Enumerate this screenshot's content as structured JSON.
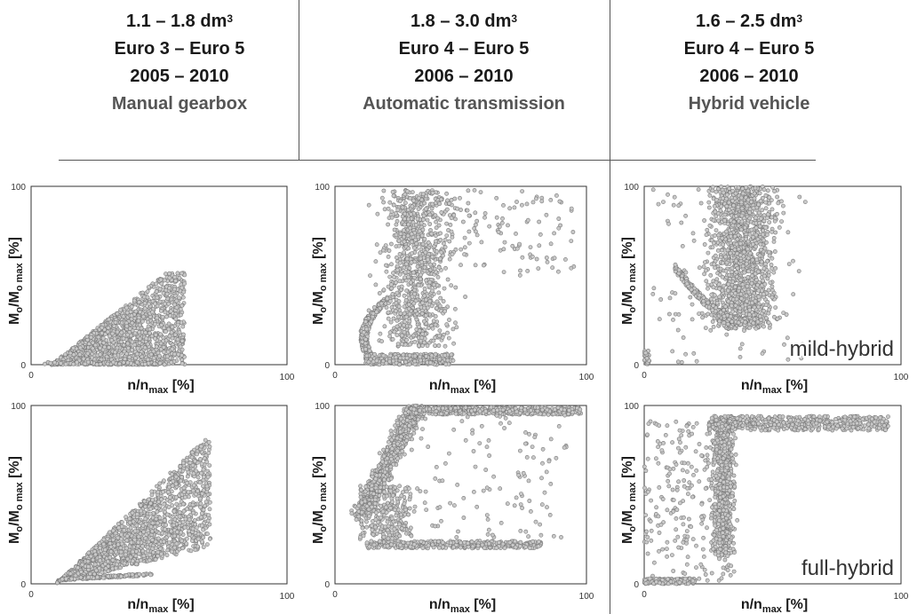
{
  "columns": [
    {
      "displacement": "1.1 – 1.8 dm",
      "sup": "3",
      "norm": "Euro 3 – Euro 5",
      "years": "2005 – 2010",
      "gearbox": "Manual gearbox"
    },
    {
      "displacement": "1.8 – 3.0 dm",
      "sup": "3",
      "norm": "Euro 4 – Euro 5",
      "years": "2006 – 2010",
      "gearbox": "Automatic transmission"
    },
    {
      "displacement": "1.6 – 2.5 dm",
      "sup": "3",
      "norm": "Euro 4 – Euro 5",
      "years": "2006 – 2010",
      "gearbox": "Hybrid vehicle"
    }
  ],
  "axis_text": {
    "x_label_main": "n/n",
    "x_label_sub": "max",
    "x_label_unit": " [%]",
    "y_label_M": "M",
    "y_label_o": "o",
    "y_label_slash": "/M",
    "y_label_sub": "o max",
    "y_label_unit": " [%]"
  },
  "colors": {
    "points_fill": "#c8c8c8",
    "points_stroke": "#7a7a7a",
    "frame": "#333333",
    "lines": "#555555"
  },
  "chart_data": [
    {
      "id": "manual-top",
      "type": "scatter",
      "xlim": [
        0,
        100
      ],
      "ylim": [
        0,
        100
      ],
      "x_ticks": [
        "0",
        "100"
      ],
      "y_ticks": [
        "0",
        "100"
      ],
      "xlabel": "n/nmax [%]",
      "ylabel": "Mo/Mo max [%]",
      "annotation": "",
      "pattern": "wedge",
      "approx_points": [
        [
          10,
          0
        ],
        [
          25,
          10
        ],
        [
          40,
          25
        ],
        [
          50,
          40
        ],
        [
          55,
          50
        ],
        [
          62,
          55
        ],
        [
          60,
          40
        ],
        [
          57,
          20
        ],
        [
          55,
          5
        ]
      ]
    },
    {
      "id": "automatic-top",
      "type": "scatter",
      "xlim": [
        0,
        100
      ],
      "ylim": [
        0,
        100
      ],
      "x_ticks": [
        "0",
        "100"
      ],
      "y_ticks": [
        "0",
        "100"
      ],
      "xlabel": "n/nmax [%]",
      "ylabel": "Mo/Mo max [%]",
      "annotation": "",
      "pattern": "auto_top",
      "approx_points": [
        [
          10,
          35
        ],
        [
          12,
          10
        ],
        [
          20,
          2
        ],
        [
          28,
          0
        ],
        [
          30,
          60
        ],
        [
          35,
          50
        ],
        [
          38,
          95
        ],
        [
          40,
          80
        ],
        [
          45,
          98
        ],
        [
          60,
          95
        ],
        [
          75,
          85
        ],
        [
          90,
          85
        ]
      ]
    },
    {
      "id": "mild-hybrid",
      "type": "scatter",
      "xlim": [
        0,
        100
      ],
      "ylim": [
        0,
        100
      ],
      "x_ticks": [
        "0",
        "100"
      ],
      "y_ticks": [
        "0",
        "100"
      ],
      "xlabel": "n/nmax [%]",
      "ylabel": "Mo/Mo max [%]",
      "annotation": "mild-hybrid",
      "pattern": "mild",
      "approx_points": [
        [
          0,
          0
        ],
        [
          12,
          50
        ],
        [
          18,
          30
        ],
        [
          30,
          20
        ],
        [
          42,
          20
        ],
        [
          40,
          80
        ],
        [
          45,
          99
        ],
        [
          60,
          99
        ],
        [
          70,
          75
        ],
        [
          75,
          30
        ]
      ]
    },
    {
      "id": "manual-bottom",
      "type": "scatter",
      "xlim": [
        0,
        100
      ],
      "ylim": [
        0,
        100
      ],
      "x_ticks": [
        "0",
        "100"
      ],
      "y_ticks": [
        "0",
        "100"
      ],
      "xlabel": "n/nmax [%]",
      "ylabel": "Mo/Mo max [%]",
      "annotation": "",
      "pattern": "wedge2",
      "approx_points": [
        [
          12,
          2
        ],
        [
          25,
          20
        ],
        [
          40,
          40
        ],
        [
          55,
          60
        ],
        [
          65,
          72
        ],
        [
          72,
          82
        ],
        [
          60,
          50
        ],
        [
          55,
          25
        ],
        [
          50,
          5
        ]
      ]
    },
    {
      "id": "automatic-bottom",
      "type": "scatter",
      "xlim": [
        0,
        100
      ],
      "ylim": [
        0,
        100
      ],
      "x_ticks": [
        "0",
        "100"
      ],
      "y_ticks": [
        "0",
        "100"
      ],
      "xlabel": "n/nmax [%]",
      "ylabel": "Mo/Mo max [%]",
      "annotation": "",
      "pattern": "auto_bottom",
      "approx_points": [
        [
          10,
          42
        ],
        [
          15,
          30
        ],
        [
          20,
          70
        ],
        [
          28,
          90
        ],
        [
          35,
          97
        ],
        [
          50,
          98
        ],
        [
          80,
          97
        ],
        [
          98,
          96
        ],
        [
          30,
          22
        ],
        [
          50,
          21
        ],
        [
          70,
          23
        ]
      ]
    },
    {
      "id": "full-hybrid",
      "type": "scatter",
      "xlim": [
        0,
        100
      ],
      "ylim": [
        0,
        100
      ],
      "x_ticks": [
        "0",
        "100"
      ],
      "y_ticks": [
        "0",
        "100"
      ],
      "xlabel": "n/nmax [%]",
      "ylabel": "Mo/Mo max [%]",
      "annotation": "full-hybrid",
      "pattern": "full",
      "approx_points": [
        [
          0,
          0
        ],
        [
          5,
          80
        ],
        [
          10,
          90
        ],
        [
          20,
          88
        ],
        [
          30,
          60
        ],
        [
          35,
          92
        ],
        [
          60,
          90
        ],
        [
          80,
          92
        ],
        [
          95,
          93
        ],
        [
          35,
          20
        ]
      ]
    }
  ]
}
